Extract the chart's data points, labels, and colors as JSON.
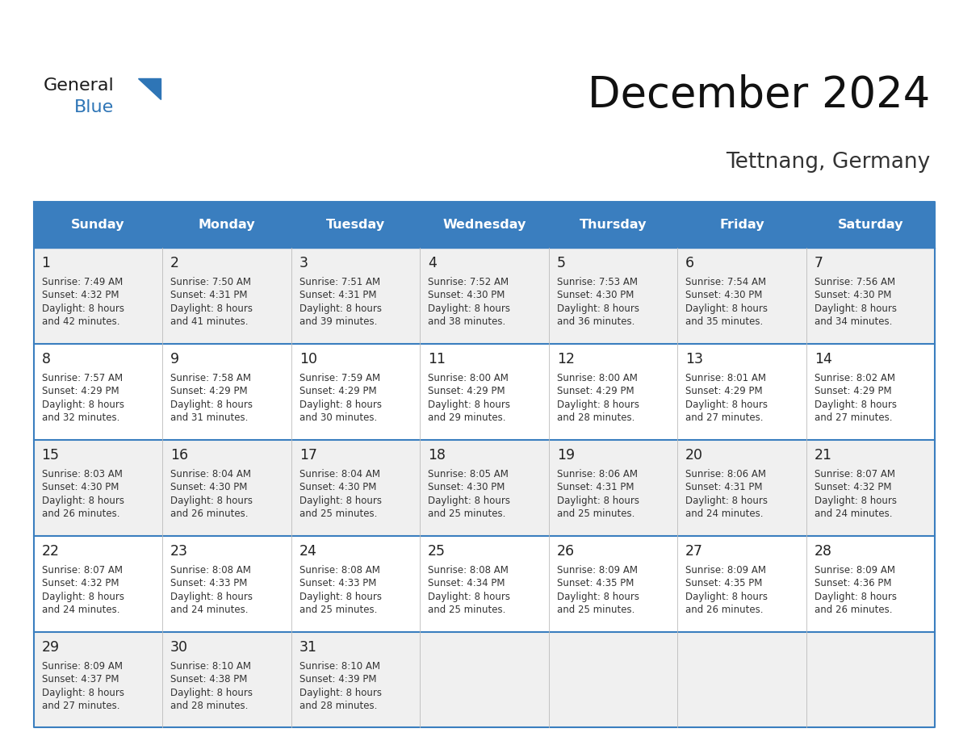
{
  "title": "December 2024",
  "subtitle": "Tettnang, Germany",
  "header_bg": "#3a7ebf",
  "header_text_color": "#ffffff",
  "day_names": [
    "Sunday",
    "Monday",
    "Tuesday",
    "Wednesday",
    "Thursday",
    "Friday",
    "Saturday"
  ],
  "row_bg_light": "#f0f0f0",
  "row_bg_white": "#ffffff",
  "separator_color": "#3a7ebf",
  "grid_color": "#bbbbbb",
  "day_number_color": "#222222",
  "info_text_color": "#333333",
  "logo_general_color": "#1a1a1a",
  "logo_blue_color": "#2e75b6",
  "logo_triangle_color": "#2e75b6",
  "days": [
    {
      "day": 1,
      "col": 0,
      "row": 0,
      "sunrise": "7:49 AM",
      "sunset": "4:32 PM",
      "daylight": "8 hours and 42 minutes"
    },
    {
      "day": 2,
      "col": 1,
      "row": 0,
      "sunrise": "7:50 AM",
      "sunset": "4:31 PM",
      "daylight": "8 hours and 41 minutes"
    },
    {
      "day": 3,
      "col": 2,
      "row": 0,
      "sunrise": "7:51 AM",
      "sunset": "4:31 PM",
      "daylight": "8 hours and 39 minutes"
    },
    {
      "day": 4,
      "col": 3,
      "row": 0,
      "sunrise": "7:52 AM",
      "sunset": "4:30 PM",
      "daylight": "8 hours and 38 minutes"
    },
    {
      "day": 5,
      "col": 4,
      "row": 0,
      "sunrise": "7:53 AM",
      "sunset": "4:30 PM",
      "daylight": "8 hours and 36 minutes"
    },
    {
      "day": 6,
      "col": 5,
      "row": 0,
      "sunrise": "7:54 AM",
      "sunset": "4:30 PM",
      "daylight": "8 hours and 35 minutes"
    },
    {
      "day": 7,
      "col": 6,
      "row": 0,
      "sunrise": "7:56 AM",
      "sunset": "4:30 PM",
      "daylight": "8 hours and 34 minutes"
    },
    {
      "day": 8,
      "col": 0,
      "row": 1,
      "sunrise": "7:57 AM",
      "sunset": "4:29 PM",
      "daylight": "8 hours and 32 minutes"
    },
    {
      "day": 9,
      "col": 1,
      "row": 1,
      "sunrise": "7:58 AM",
      "sunset": "4:29 PM",
      "daylight": "8 hours and 31 minutes"
    },
    {
      "day": 10,
      "col": 2,
      "row": 1,
      "sunrise": "7:59 AM",
      "sunset": "4:29 PM",
      "daylight": "8 hours and 30 minutes"
    },
    {
      "day": 11,
      "col": 3,
      "row": 1,
      "sunrise": "8:00 AM",
      "sunset": "4:29 PM",
      "daylight": "8 hours and 29 minutes"
    },
    {
      "day": 12,
      "col": 4,
      "row": 1,
      "sunrise": "8:00 AM",
      "sunset": "4:29 PM",
      "daylight": "8 hours and 28 minutes"
    },
    {
      "day": 13,
      "col": 5,
      "row": 1,
      "sunrise": "8:01 AM",
      "sunset": "4:29 PM",
      "daylight": "8 hours and 27 minutes"
    },
    {
      "day": 14,
      "col": 6,
      "row": 1,
      "sunrise": "8:02 AM",
      "sunset": "4:29 PM",
      "daylight": "8 hours and 27 minutes"
    },
    {
      "day": 15,
      "col": 0,
      "row": 2,
      "sunrise": "8:03 AM",
      "sunset": "4:30 PM",
      "daylight": "8 hours and 26 minutes"
    },
    {
      "day": 16,
      "col": 1,
      "row": 2,
      "sunrise": "8:04 AM",
      "sunset": "4:30 PM",
      "daylight": "8 hours and 26 minutes"
    },
    {
      "day": 17,
      "col": 2,
      "row": 2,
      "sunrise": "8:04 AM",
      "sunset": "4:30 PM",
      "daylight": "8 hours and 25 minutes"
    },
    {
      "day": 18,
      "col": 3,
      "row": 2,
      "sunrise": "8:05 AM",
      "sunset": "4:30 PM",
      "daylight": "8 hours and 25 minutes"
    },
    {
      "day": 19,
      "col": 4,
      "row": 2,
      "sunrise": "8:06 AM",
      "sunset": "4:31 PM",
      "daylight": "8 hours and 25 minutes"
    },
    {
      "day": 20,
      "col": 5,
      "row": 2,
      "sunrise": "8:06 AM",
      "sunset": "4:31 PM",
      "daylight": "8 hours and 24 minutes"
    },
    {
      "day": 21,
      "col": 6,
      "row": 2,
      "sunrise": "8:07 AM",
      "sunset": "4:32 PM",
      "daylight": "8 hours and 24 minutes"
    },
    {
      "day": 22,
      "col": 0,
      "row": 3,
      "sunrise": "8:07 AM",
      "sunset": "4:32 PM",
      "daylight": "8 hours and 24 minutes"
    },
    {
      "day": 23,
      "col": 1,
      "row": 3,
      "sunrise": "8:08 AM",
      "sunset": "4:33 PM",
      "daylight": "8 hours and 24 minutes"
    },
    {
      "day": 24,
      "col": 2,
      "row": 3,
      "sunrise": "8:08 AM",
      "sunset": "4:33 PM",
      "daylight": "8 hours and 25 minutes"
    },
    {
      "day": 25,
      "col": 3,
      "row": 3,
      "sunrise": "8:08 AM",
      "sunset": "4:34 PM",
      "daylight": "8 hours and 25 minutes"
    },
    {
      "day": 26,
      "col": 4,
      "row": 3,
      "sunrise": "8:09 AM",
      "sunset": "4:35 PM",
      "daylight": "8 hours and 25 minutes"
    },
    {
      "day": 27,
      "col": 5,
      "row": 3,
      "sunrise": "8:09 AM",
      "sunset": "4:35 PM",
      "daylight": "8 hours and 26 minutes"
    },
    {
      "day": 28,
      "col": 6,
      "row": 3,
      "sunrise": "8:09 AM",
      "sunset": "4:36 PM",
      "daylight": "8 hours and 26 minutes"
    },
    {
      "day": 29,
      "col": 0,
      "row": 4,
      "sunrise": "8:09 AM",
      "sunset": "4:37 PM",
      "daylight": "8 hours and 27 minutes"
    },
    {
      "day": 30,
      "col": 1,
      "row": 4,
      "sunrise": "8:10 AM",
      "sunset": "4:38 PM",
      "daylight": "8 hours and 28 minutes"
    },
    {
      "day": 31,
      "col": 2,
      "row": 4,
      "sunrise": "8:10 AM",
      "sunset": "4:39 PM",
      "daylight": "8 hours and 28 minutes"
    }
  ]
}
